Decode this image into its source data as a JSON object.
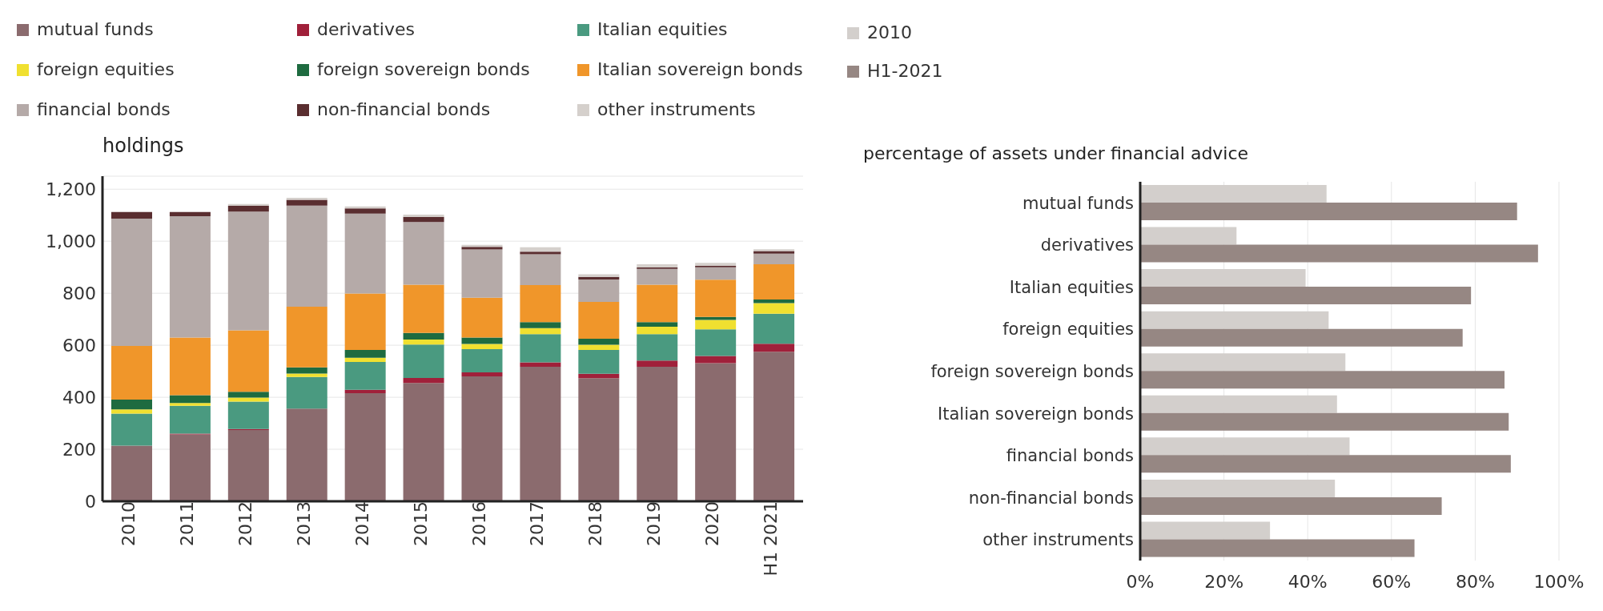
{
  "chart_data": [
    {
      "type": "bar",
      "stacked": true,
      "ylabel": "holdings",
      "categories": [
        "2010",
        "2011",
        "2012",
        "2013",
        "2014",
        "2015",
        "2016",
        "2017",
        "2018",
        "2019",
        "2020",
        "H1 2021"
      ],
      "series": [
        {
          "name": "mutual funds",
          "color": "#8b6b6e",
          "values": [
            214,
            257,
            274,
            356,
            416,
            455,
            480,
            517,
            473,
            517,
            531,
            575
          ]
        },
        {
          "name": "derivatives",
          "color": "#a0203a",
          "values": [
            null,
            3,
            4,
            null,
            13,
            19,
            16,
            17,
            17,
            24,
            28,
            31
          ]
        },
        {
          "name": "Italian equities",
          "color": "#4a9a80",
          "values": [
            123,
            107,
            105,
            122,
            107,
            129,
            89,
            109,
            92,
            102,
            102,
            115
          ]
        },
        {
          "name": "foreign equities",
          "color": "#f0e030",
          "values": [
            16,
            11,
            16,
            13,
            16,
            19,
            20,
            23,
            20,
            28,
            36,
            41
          ]
        },
        {
          "name": "foreign sovereign bonds",
          "color": "#1e6b40",
          "values": [
            38,
            30,
            22,
            24,
            30,
            25,
            25,
            23,
            23,
            18,
            12,
            14
          ]
        },
        {
          "name": "Italian sovereign bonds",
          "color": "#f0962a",
          "values": [
            206,
            222,
            236,
            233,
            217,
            186,
            153,
            142,
            142,
            144,
            143,
            135
          ]
        },
        {
          "name": "financial bonds",
          "color": "#b5aaa8",
          "values": [
            490,
            466,
            457,
            389,
            307,
            241,
            185,
            119,
            86,
            61,
            48,
            41
          ]
        },
        {
          "name": "non-financial bonds",
          "color": "#5a2e30",
          "values": [
            25,
            16,
            22,
            22,
            20,
            20,
            10,
            10,
            10,
            5,
            5,
            10
          ]
        },
        {
          "name": "other instruments",
          "color": "#d5d0cc",
          "values": [
            null,
            null,
            7,
            8,
            8,
            8,
            8,
            17,
            10,
            12,
            12,
            7
          ]
        }
      ],
      "ylim": [
        0,
        1250
      ],
      "yticks": [
        0,
        200,
        400,
        600,
        800,
        {
          "value": 1000,
          "label": "1,000"
        },
        {
          "value": 1200,
          "label": "1,200"
        }
      ],
      "grid": "y",
      "legend": "top"
    },
    {
      "type": "bar",
      "orientation": "horizontal",
      "title": "percentage of assets under financial advice",
      "categories": [
        "mutual funds",
        "derivatives",
        "Italian equities",
        "foreign equities",
        "foreign sovereign bonds",
        "Italian sovereign bonds",
        "financial bonds",
        "non-financial bonds",
        "other instruments"
      ],
      "series": [
        {
          "name": "2010",
          "color": "#d3cfcc",
          "values": [
            44.5,
            23,
            39.5,
            45,
            49,
            47,
            50,
            46.5,
            31
          ]
        },
        {
          "name": "H1-2021",
          "color": "#968783",
          "values": [
            90,
            95,
            79,
            77,
            87,
            88,
            88.5,
            72,
            65.5
          ]
        }
      ],
      "xlim": [
        0,
        100
      ],
      "xticks": [
        {
          "value": 0,
          "label": "0%"
        },
        {
          "value": 20,
          "label": "20%"
        },
        {
          "value": 40,
          "label": "40%"
        },
        {
          "value": 60,
          "label": "60%"
        },
        {
          "value": 80,
          "label": "80%"
        },
        {
          "value": 100,
          "label": "100%"
        }
      ],
      "grid": "x",
      "legend": "top left"
    }
  ]
}
